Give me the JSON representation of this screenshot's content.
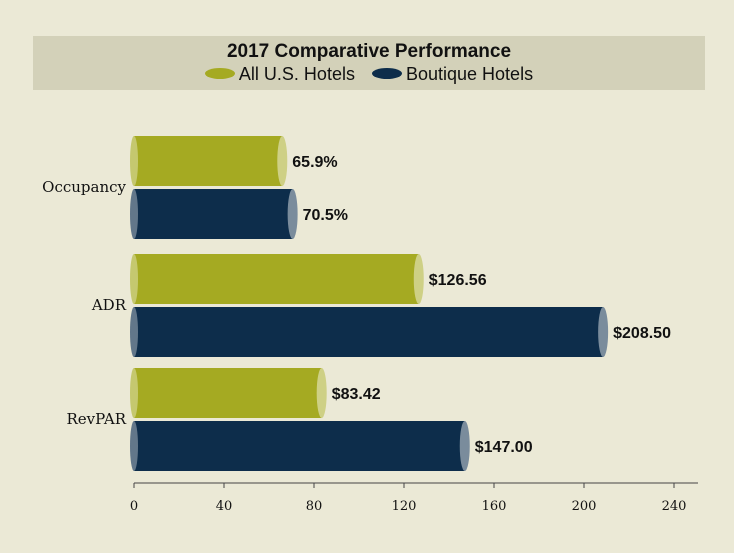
{
  "chart_data": {
    "type": "bar",
    "orientation": "horizontal",
    "title": "2017 Comparative Performance",
    "categories": [
      "Occupancy",
      "ADR",
      "RevPAR"
    ],
    "series": [
      {
        "name": "All U.S. Hotels",
        "color": "#a5aa22",
        "values": [
          65.9,
          126.56,
          83.42
        ],
        "labels": [
          "65.9%",
          "$126.56",
          "$83.42"
        ]
      },
      {
        "name": "Boutique Hotels",
        "color": "#0d2d4b",
        "values": [
          70.5,
          208.5,
          147.0
        ],
        "labels": [
          "70.5%",
          "$208.50",
          "$147.00"
        ]
      }
    ],
    "xlim": [
      0,
      240
    ],
    "xticks": [
      "0",
      "40",
      "80",
      "120",
      "160",
      "200",
      "240"
    ],
    "grid": false,
    "legend_position": "top"
  }
}
